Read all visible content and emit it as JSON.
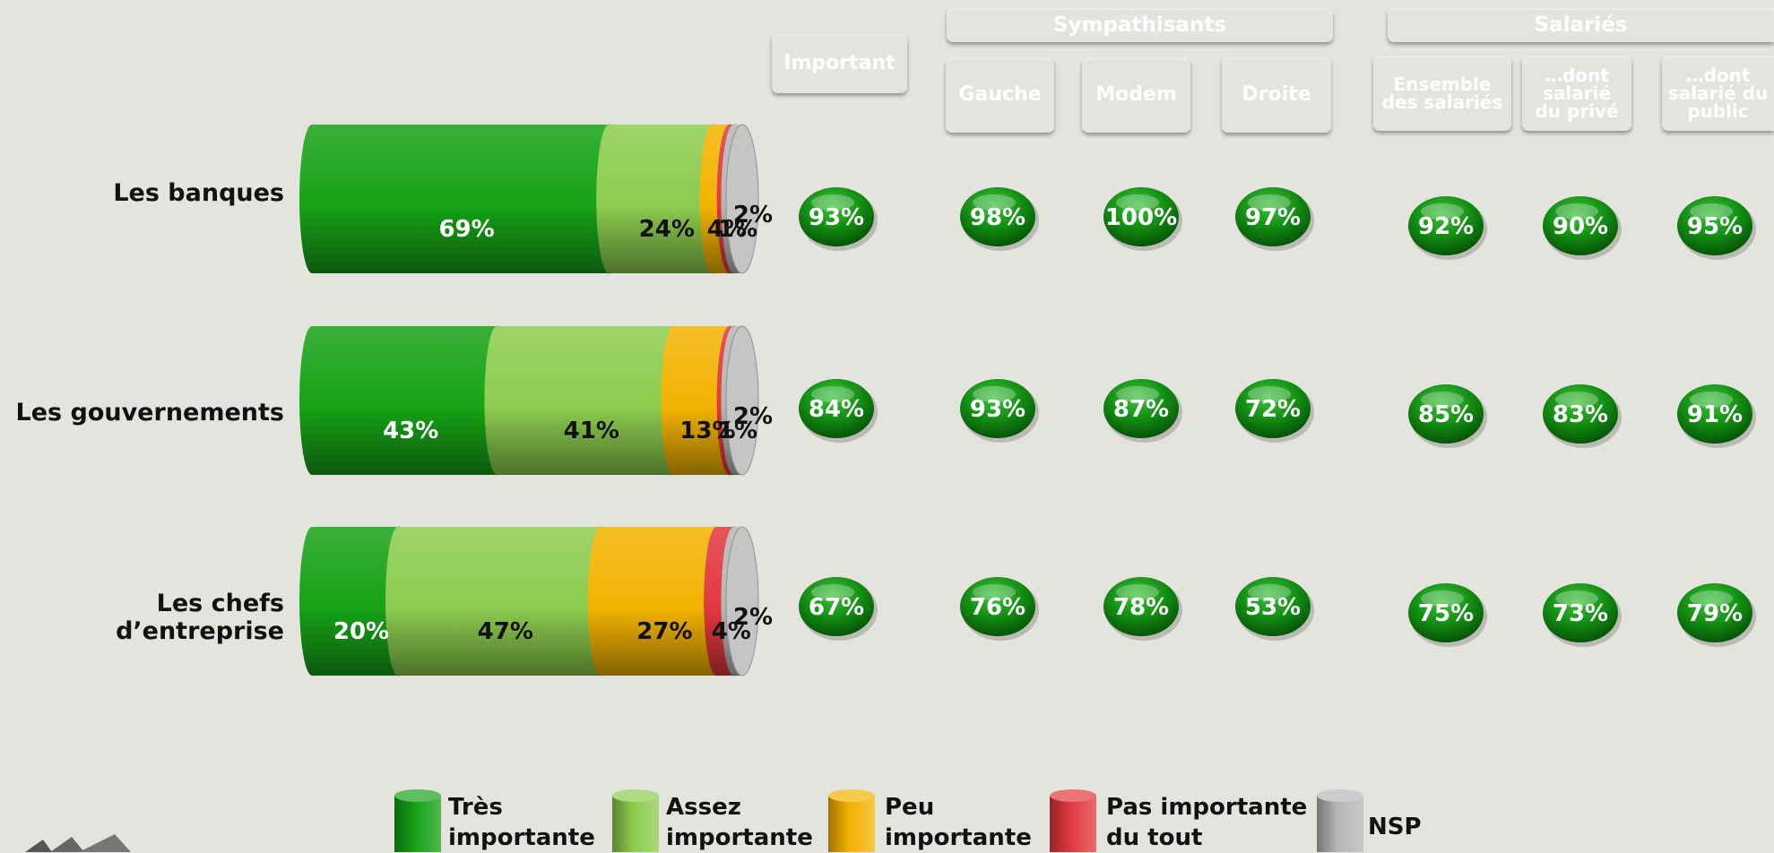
{
  "chart_data": {
    "type": "bar",
    "categories": [
      "Les banques",
      "Les gouvernements",
      "Les chefs d’entreprise"
    ],
    "series": [
      {
        "name": "Très importante",
        "values": [
          69,
          43,
          20
        ],
        "color": "#16a216"
      },
      {
        "name": "Assez importante",
        "values": [
          24,
          41,
          47
        ],
        "color": "#8ccc4e"
      },
      {
        "name": "Peu importante",
        "values": [
          4,
          13,
          27
        ],
        "color": "#f2b300"
      },
      {
        "name": "Pas importante du tout",
        "values": [
          1,
          1,
          4
        ],
        "color": "#e2383e"
      },
      {
        "name": "NSP",
        "values": [
          2,
          2,
          2
        ],
        "color": "#b6b6b6"
      }
    ],
    "value_labels": [
      [
        "69%",
        "24%",
        "4%",
        "1%",
        "2%"
      ],
      [
        "43%",
        "41%",
        "13%",
        "1%",
        "2%"
      ],
      [
        "20%",
        "47%",
        "27%",
        "4%",
        "2%"
      ]
    ],
    "stacked": true,
    "orientation": "horizontal",
    "legend": "bottom",
    "legend_labels": [
      [
        "Très",
        "importante"
      ],
      [
        "Assez",
        "importante"
      ],
      [
        "Peu",
        "importante"
      ],
      [
        "Pas importante",
        "du tout"
      ],
      [
        "NSP"
      ]
    ],
    "table": {
      "groups": [
        {
          "label": "Sympathisants",
          "color": "#9c1fa8"
        },
        {
          "label": "Salariés",
          "color": "#9c1fa8"
        }
      ],
      "columns": [
        {
          "lines": [
            "Important"
          ],
          "color": "#1c9a1c"
        },
        {
          "lines": [
            "Gauche"
          ],
          "color": "#b51c26"
        },
        {
          "lines": [
            "Modem"
          ],
          "color": "#ff4a10"
        },
        {
          "lines": [
            "Droite"
          ],
          "color": "#0f2a78"
        },
        {
          "lines": [
            "Ensemble",
            "des salariés"
          ],
          "color": "#2f5e60"
        },
        {
          "lines": [
            "…dont",
            "salarié",
            "du privé"
          ],
          "color": "#3fa1ae"
        },
        {
          "lines": [
            "…dont",
            "salarié du",
            "public"
          ],
          "color": "#7fd2d8"
        }
      ],
      "rows": [
        [
          "93%",
          "98%",
          "100%",
          "97%",
          "92%",
          "90%",
          "95%"
        ],
        [
          "84%",
          "93%",
          "87%",
          "72%",
          "85%",
          "83%",
          "91%"
        ],
        [
          "67%",
          "76%",
          "78%",
          "53%",
          "75%",
          "73%",
          "79%"
        ]
      ]
    }
  }
}
